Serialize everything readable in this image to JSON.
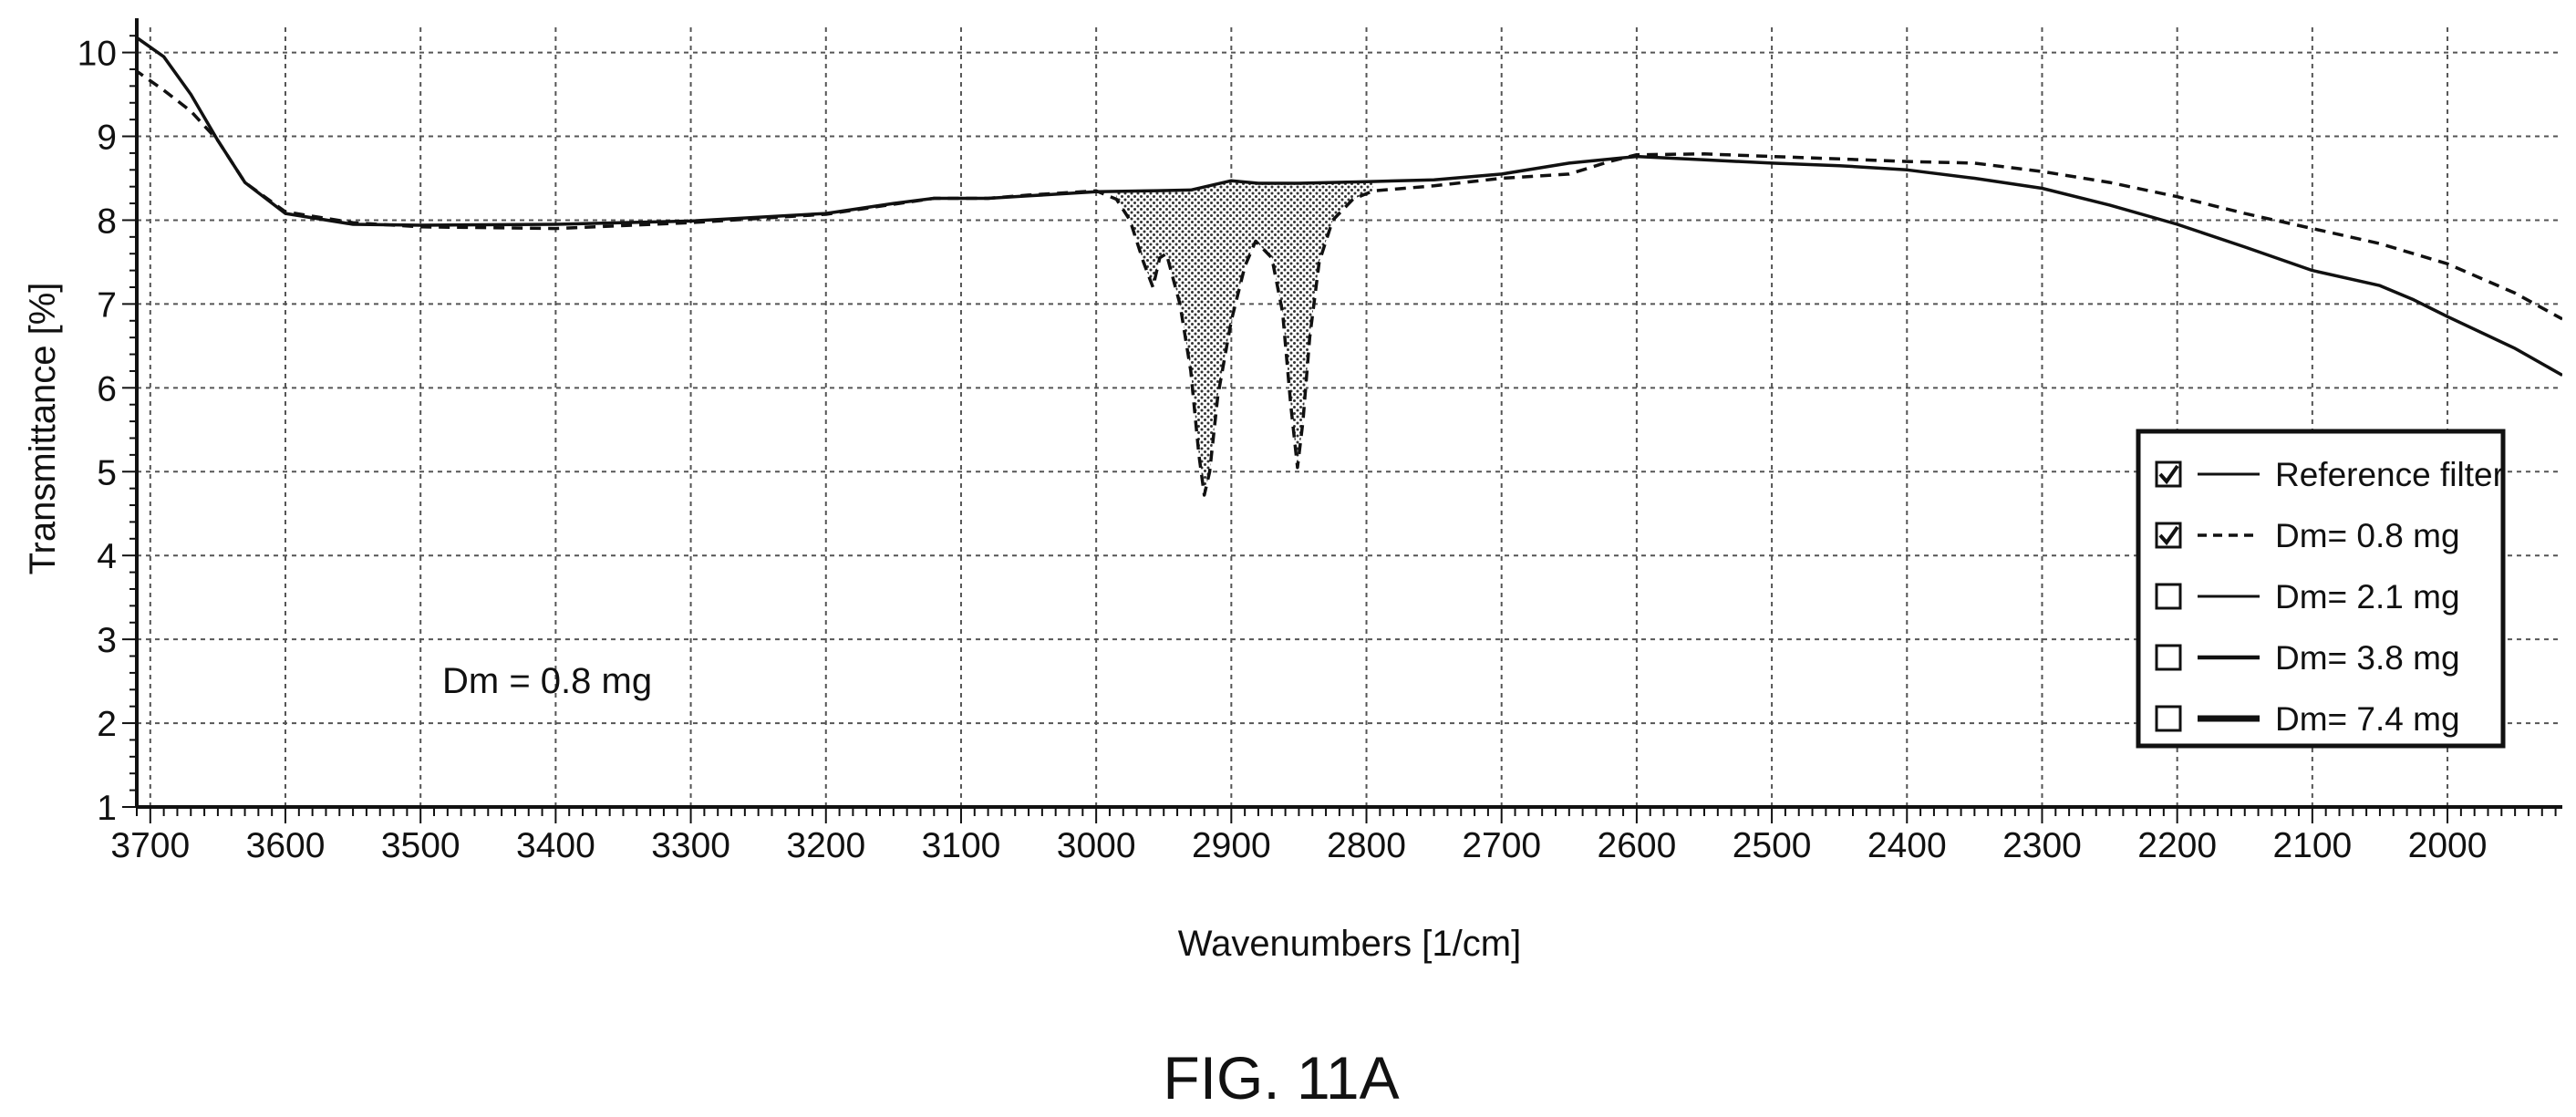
{
  "figure": {
    "caption": "FIG. 11A"
  },
  "chart_data": {
    "type": "line",
    "title": "",
    "xlabel": "Wavenumbers [1/cm]",
    "ylabel": "Transmittance [%]",
    "xlim": [
      3710,
      1915
    ],
    "ylim": [
      1,
      10.3
    ],
    "x_reversed": true,
    "grid": true,
    "x_ticks": [
      3700,
      3600,
      3500,
      3400,
      3300,
      3200,
      3100,
      3000,
      2900,
      2800,
      2700,
      2600,
      2500,
      2400,
      2300,
      2200,
      2100,
      2000
    ],
    "y_ticks": [
      1,
      2,
      3,
      4,
      5,
      6,
      7,
      8,
      9,
      10
    ],
    "annotation": "Dm = 0.8 mg",
    "legend_position": "right",
    "legend": [
      {
        "label": "Reference filter",
        "checked": true,
        "style": "solid"
      },
      {
        "label": "Dm= 0.8 mg",
        "checked": true,
        "style": "dashed"
      },
      {
        "label": "Dm= 2.1 mg",
        "checked": false,
        "style": "solid"
      },
      {
        "label": "Dm= 3.8 mg",
        "checked": false,
        "style": "solid-medium"
      },
      {
        "label": "Dm= 7.4 mg",
        "checked": false,
        "style": "solid-thick"
      }
    ],
    "shaded_region": {
      "from": 2995,
      "to": 2795,
      "description_series": [
        "Reference filter",
        "Dm= 0.8 mg"
      ]
    },
    "series": [
      {
        "name": "Reference filter",
        "style": "solid",
        "points": [
          [
            3712,
            10.2
          ],
          [
            3690,
            9.95
          ],
          [
            3670,
            9.5
          ],
          [
            3650,
            8.95
          ],
          [
            3630,
            8.45
          ],
          [
            3600,
            8.08
          ],
          [
            3550,
            7.95
          ],
          [
            3500,
            7.94
          ],
          [
            3400,
            7.95
          ],
          [
            3300,
            7.99
          ],
          [
            3200,
            8.08
          ],
          [
            3150,
            8.2
          ],
          [
            3120,
            8.26
          ],
          [
            3080,
            8.26
          ],
          [
            3050,
            8.29
          ],
          [
            3000,
            8.34
          ],
          [
            2960,
            8.35
          ],
          [
            2930,
            8.36
          ],
          [
            2900,
            8.47
          ],
          [
            2880,
            8.44
          ],
          [
            2850,
            8.44
          ],
          [
            2800,
            8.46
          ],
          [
            2750,
            8.48
          ],
          [
            2700,
            8.55
          ],
          [
            2650,
            8.68
          ],
          [
            2600,
            8.76
          ],
          [
            2550,
            8.72
          ],
          [
            2500,
            8.68
          ],
          [
            2450,
            8.65
          ],
          [
            2400,
            8.6
          ],
          [
            2350,
            8.5
          ],
          [
            2300,
            8.38
          ],
          [
            2250,
            8.18
          ],
          [
            2200,
            7.95
          ],
          [
            2150,
            7.68
          ],
          [
            2100,
            7.4
          ],
          [
            2050,
            7.22
          ],
          [
            2025,
            7.05
          ],
          [
            2000,
            6.85
          ],
          [
            1950,
            6.47
          ],
          [
            1915,
            6.15
          ]
        ]
      },
      {
        "name": "Dm= 0.8 mg",
        "style": "dashed",
        "points": [
          [
            3712,
            9.8
          ],
          [
            3690,
            9.55
          ],
          [
            3670,
            9.3
          ],
          [
            3650,
            8.95
          ],
          [
            3630,
            8.45
          ],
          [
            3600,
            8.1
          ],
          [
            3550,
            7.97
          ],
          [
            3500,
            7.92
          ],
          [
            3400,
            7.9
          ],
          [
            3300,
            7.97
          ],
          [
            3200,
            8.07
          ],
          [
            3150,
            8.19
          ],
          [
            3120,
            8.26
          ],
          [
            3080,
            8.26
          ],
          [
            3050,
            8.3
          ],
          [
            3000,
            8.35
          ],
          [
            2985,
            8.25
          ],
          [
            2975,
            8.0
          ],
          [
            2965,
            7.5
          ],
          [
            2958,
            7.2
          ],
          [
            2953,
            7.55
          ],
          [
            2948,
            7.6
          ],
          [
            2938,
            7.0
          ],
          [
            2930,
            6.2
          ],
          [
            2924,
            5.2
          ],
          [
            2920,
            4.72
          ],
          [
            2916,
            5.0
          ],
          [
            2910,
            5.9
          ],
          [
            2900,
            6.8
          ],
          [
            2890,
            7.45
          ],
          [
            2882,
            7.75
          ],
          [
            2870,
            7.55
          ],
          [
            2862,
            6.9
          ],
          [
            2856,
            5.8
          ],
          [
            2851,
            5.05
          ],
          [
            2847,
            5.6
          ],
          [
            2842,
            6.6
          ],
          [
            2835,
            7.5
          ],
          [
            2825,
            8.0
          ],
          [
            2810,
            8.25
          ],
          [
            2795,
            8.35
          ],
          [
            2750,
            8.41
          ],
          [
            2700,
            8.5
          ],
          [
            2650,
            8.55
          ],
          [
            2620,
            8.7
          ],
          [
            2600,
            8.78
          ],
          [
            2550,
            8.79
          ],
          [
            2500,
            8.76
          ],
          [
            2450,
            8.73
          ],
          [
            2400,
            8.7
          ],
          [
            2350,
            8.68
          ],
          [
            2300,
            8.58
          ],
          [
            2250,
            8.45
          ],
          [
            2200,
            8.28
          ],
          [
            2150,
            8.08
          ],
          [
            2100,
            7.9
          ],
          [
            2050,
            7.72
          ],
          [
            2000,
            7.48
          ],
          [
            1950,
            7.13
          ],
          [
            1915,
            6.82
          ]
        ]
      }
    ]
  }
}
